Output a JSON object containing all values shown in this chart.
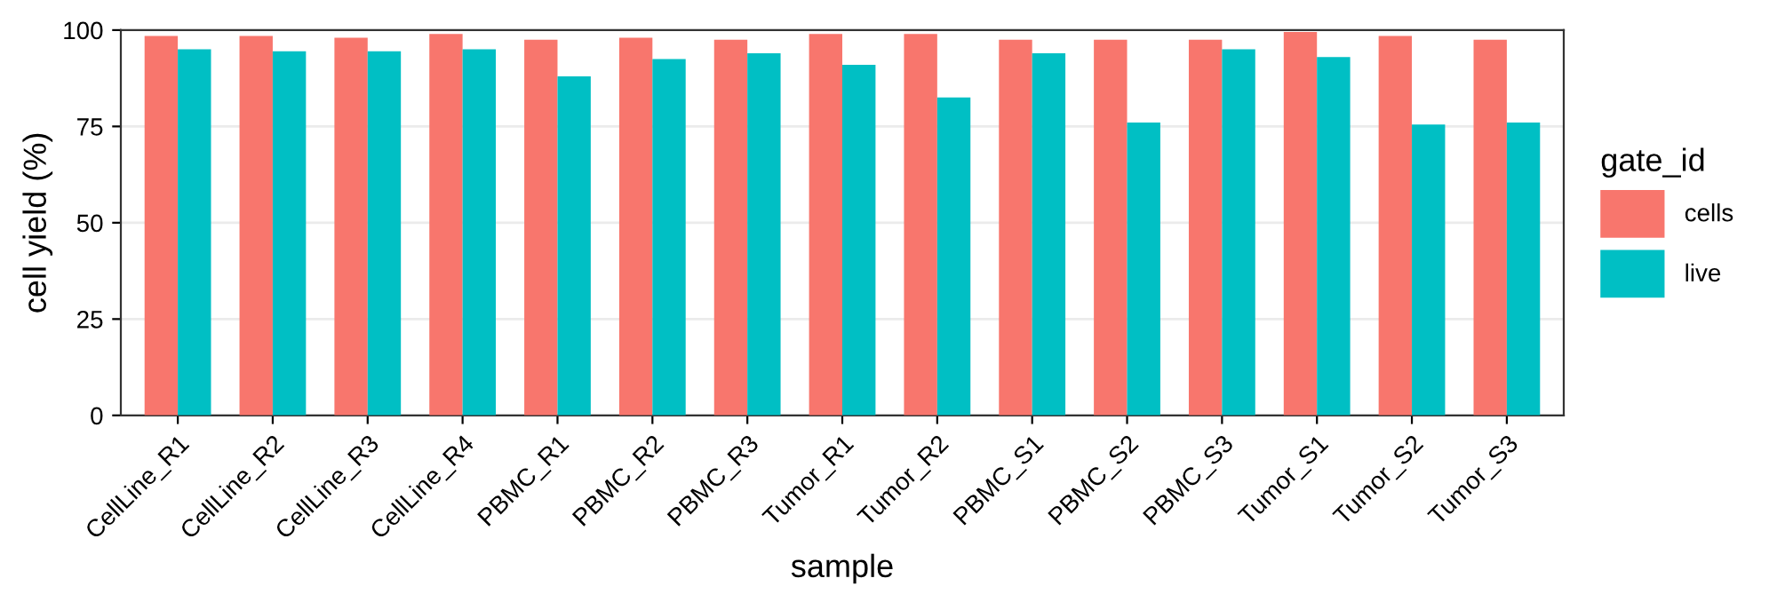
{
  "chart_data": {
    "type": "bar",
    "xlabel": "sample",
    "ylabel": "cell yield (%)",
    "legend_title": "gate_id",
    "categories": [
      "CellLine_R1",
      "CellLine_R2",
      "CellLine_R3",
      "CellLine_R4",
      "PBMC_R1",
      "PBMC_R2",
      "PBMC_R3",
      "Tumor_R1",
      "Tumor_R2",
      "PBMC_S1",
      "PBMC_S2",
      "PBMC_S3",
      "Tumor_S1",
      "Tumor_S2",
      "Tumor_S3"
    ],
    "series": [
      {
        "name": "cells",
        "color": "#f8766d",
        "values": [
          98.5,
          98.5,
          98,
          99,
          97.5,
          98,
          97.5,
          99,
          99,
          97.5,
          97.5,
          97.5,
          99.5,
          98.5,
          97.5
        ]
      },
      {
        "name": "live",
        "color": "#00bfc4",
        "values": [
          95,
          94.5,
          94.5,
          95,
          88,
          92.5,
          94,
          91,
          82.5,
          94,
          76,
          95,
          93,
          75.5,
          76
        ]
      }
    ],
    "ylim": [
      0,
      100
    ],
    "yticks": [
      0,
      25,
      50,
      75,
      100
    ],
    "grid": "y",
    "legend": "right"
  }
}
